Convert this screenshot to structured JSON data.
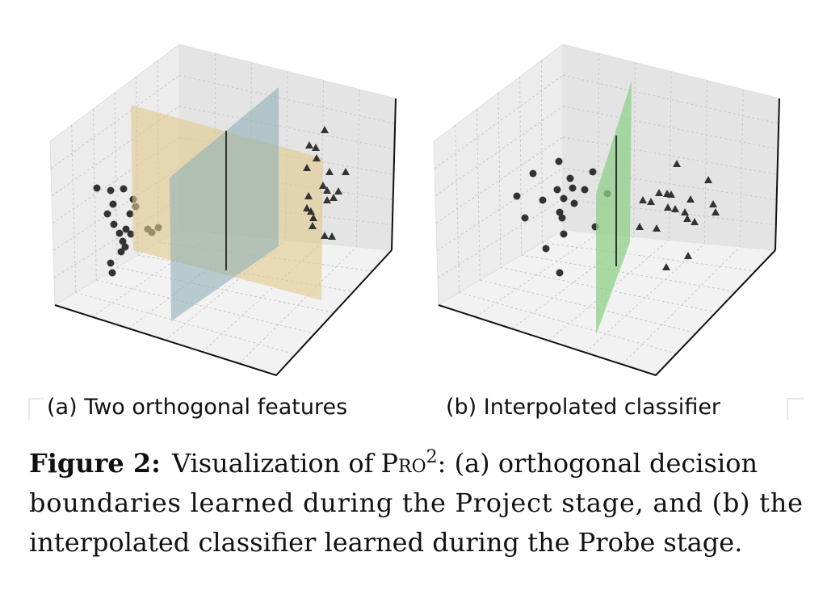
{
  "panels": [
    {
      "caption": "(a) Two orthogonal features"
    },
    {
      "caption": "(b) Interpolated classifier"
    }
  ],
  "caption": {
    "label": "Figure 2:",
    "before": "Visualization of",
    "name": "Pro",
    "sup": "2",
    "lines": [
      ": (a) orthogonal decision",
      "boundaries learned during the Project stage, and (b) the",
      "interpolated classifier learned during the Probe stage."
    ]
  }
}
